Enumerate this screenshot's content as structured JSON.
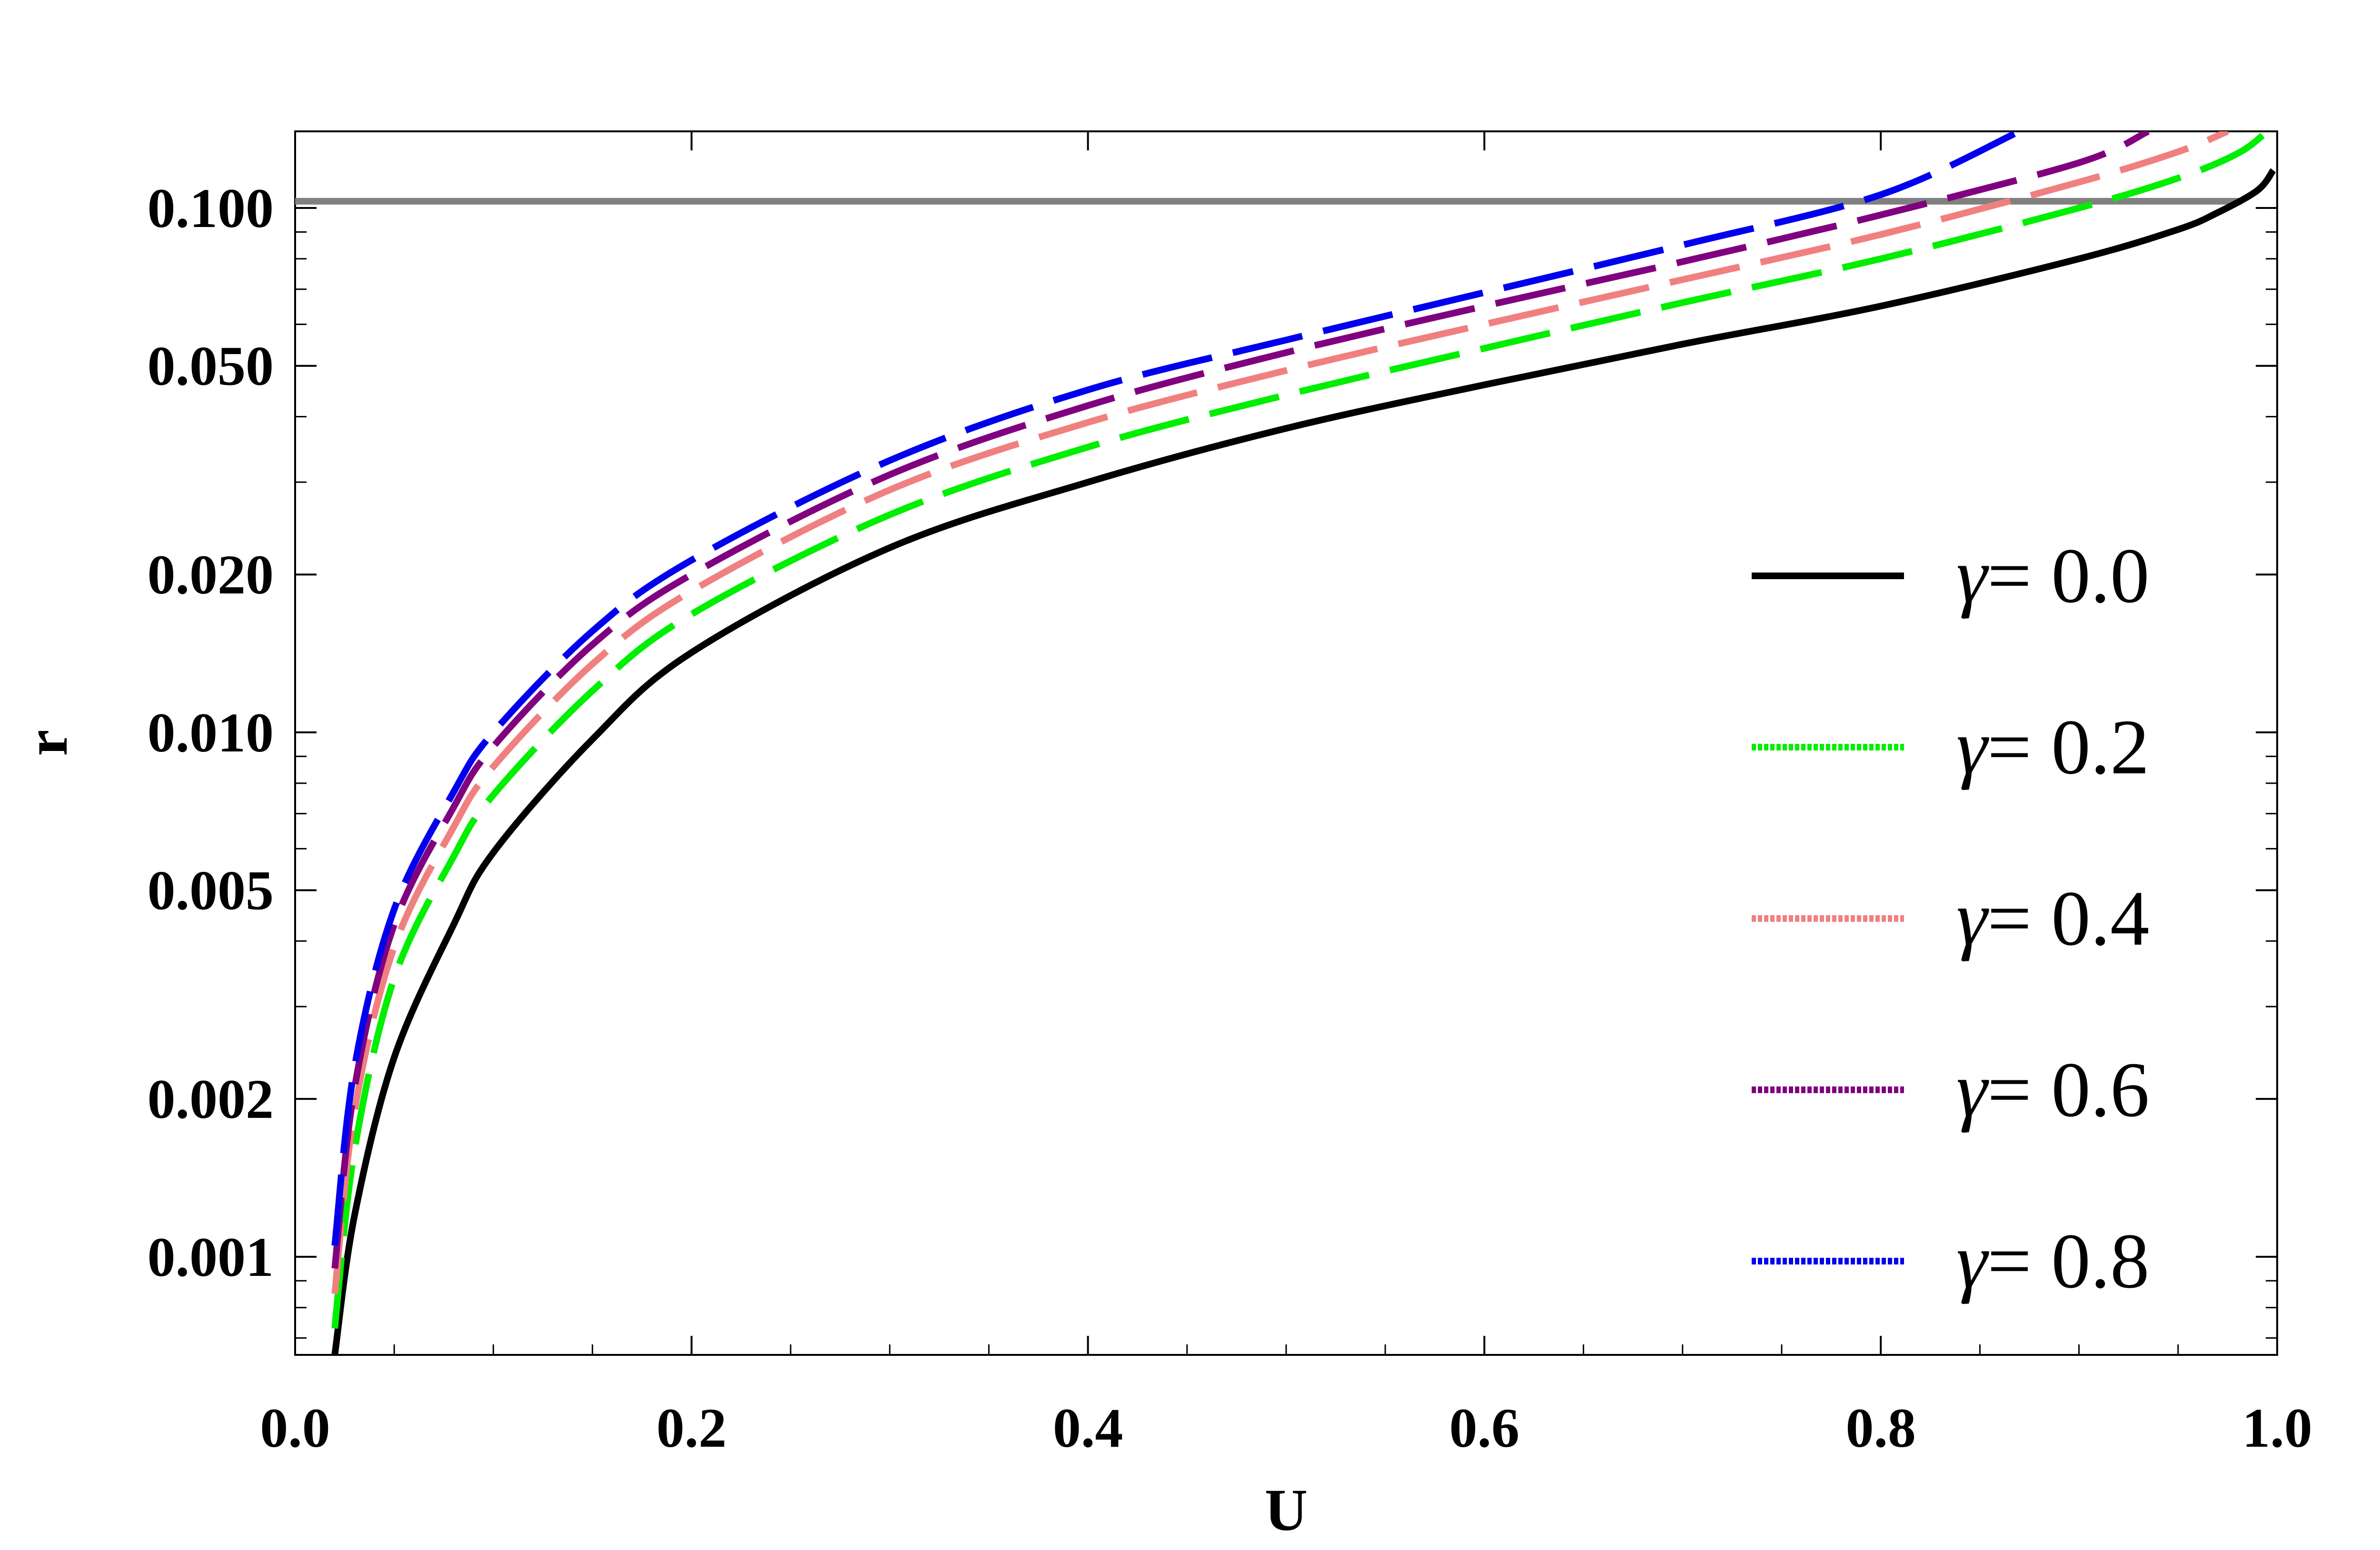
{
  "chart_data": {
    "type": "line",
    "title": "",
    "xlabel": "U",
    "ylabel": "r",
    "y_scale": "log",
    "xlim": [
      0.0,
      1.0
    ],
    "ylim": [
      0.00065,
      0.14
    ],
    "x_ticks": [
      0.0,
      0.2,
      0.4,
      0.6,
      0.8,
      1.0
    ],
    "x_tick_labels": [
      "0.0",
      "0.2",
      "0.4",
      "0.6",
      "0.8",
      "1.0"
    ],
    "y_ticks": [
      0.001,
      0.002,
      0.005,
      0.01,
      0.02,
      0.05,
      0.1
    ],
    "y_tick_labels": [
      "0.001",
      "0.002",
      "0.005",
      "0.010",
      "0.020",
      "0.050",
      "0.100"
    ],
    "grid": false,
    "legend_position": "right",
    "reference_line": {
      "y": 0.103,
      "color": "#808080"
    },
    "series": [
      {
        "name": "γ= 0.0",
        "symbol": "γ",
        "value_text": "= 0.0",
        "color": "#000000",
        "dash": "solid",
        "x": [
          0.02,
          0.03,
          0.05,
          0.08,
          0.1,
          0.15,
          0.2,
          0.3,
          0.4,
          0.5,
          0.6,
          0.7,
          0.8,
          0.9,
          0.95,
          0.97,
          0.99,
          0.998
        ],
        "y": [
          0.00065,
          0.0012,
          0.0024,
          0.0043,
          0.0059,
          0.0097,
          0.0142,
          0.0225,
          0.03,
          0.038,
          0.046,
          0.055,
          0.065,
          0.08,
          0.091,
          0.098,
          0.108,
          0.118
        ]
      },
      {
        "name": "γ= 0.2",
        "symbol": "γ",
        "value_text": "= 0.2",
        "color": "#00ee00",
        "dash": "dashed",
        "x": [
          0.02,
          0.03,
          0.05,
          0.08,
          0.1,
          0.15,
          0.2,
          0.3,
          0.4,
          0.5,
          0.6,
          0.7,
          0.8,
          0.9,
          0.95,
          0.98,
          0.995
        ],
        "y": [
          0.00073,
          0.0016,
          0.0034,
          0.0058,
          0.0076,
          0.012,
          0.0168,
          0.026,
          0.035,
          0.044,
          0.054,
          0.066,
          0.08,
          0.1,
          0.114,
          0.127,
          0.14
        ]
      },
      {
        "name": "γ= 0.4",
        "symbol": "γ",
        "value_text": "= 0.4",
        "color": "#f08080",
        "dash": "dashed",
        "x": [
          0.02,
          0.03,
          0.05,
          0.08,
          0.1,
          0.15,
          0.2,
          0.3,
          0.4,
          0.5,
          0.6,
          0.7,
          0.8,
          0.9,
          0.95,
          0.975
        ],
        "y": [
          0.00085,
          0.0019,
          0.0039,
          0.0066,
          0.0086,
          0.0135,
          0.0186,
          0.029,
          0.039,
          0.049,
          0.06,
          0.073,
          0.089,
          0.112,
          0.128,
          0.14
        ]
      },
      {
        "name": "γ= 0.6",
        "symbol": "γ",
        "value_text": "= 0.6",
        "color": "#800080",
        "dash": "dashed",
        "x": [
          0.02,
          0.03,
          0.05,
          0.08,
          0.1,
          0.15,
          0.2,
          0.3,
          0.4,
          0.5,
          0.6,
          0.7,
          0.8,
          0.9,
          0.935
        ],
        "y": [
          0.00095,
          0.0021,
          0.0043,
          0.0072,
          0.0094,
          0.0147,
          0.02,
          0.031,
          0.042,
          0.053,
          0.065,
          0.079,
          0.097,
          0.122,
          0.14
        ]
      },
      {
        "name": "γ= 0.8",
        "symbol": "γ",
        "value_text": "= 0.8",
        "color": "#0000ee",
        "dash": "dashed",
        "x": [
          0.02,
          0.03,
          0.05,
          0.08,
          0.1,
          0.15,
          0.2,
          0.3,
          0.4,
          0.5,
          0.6,
          0.7,
          0.8,
          0.87
        ],
        "y": [
          0.00105,
          0.0023,
          0.0046,
          0.0077,
          0.01,
          0.0156,
          0.0213,
          0.033,
          0.045,
          0.056,
          0.069,
          0.085,
          0.106,
          0.14
        ]
      }
    ]
  }
}
